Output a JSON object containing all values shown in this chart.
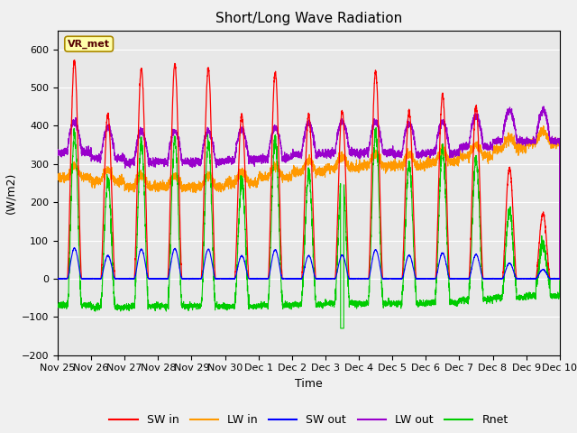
{
  "title": "Short/Long Wave Radiation",
  "xlabel": "Time",
  "ylabel": "(W/m2)",
  "ylim": [
    -200,
    650
  ],
  "yticks": [
    -200,
    -100,
    0,
    100,
    200,
    300,
    400,
    500,
    600
  ],
  "n_days": 15,
  "n_points_per_day": 288,
  "series_colors": {
    "SW_in": "#ff0000",
    "LW_in": "#ff9900",
    "SW_out": "#0000ff",
    "LW_out": "#9900cc",
    "Rnet": "#00cc00"
  },
  "legend_labels": [
    "SW in",
    "LW in",
    "SW out",
    "LW out",
    "Rnet"
  ],
  "annotation_text": "VR_met",
  "background_color": "#e8e8e8",
  "grid_color": "#ffffff",
  "tick_labels": [
    "Nov 25",
    "Nov 26",
    "Nov 27",
    "Nov 28",
    "Nov 29",
    "Nov 30",
    "Dec 1",
    "Dec 2",
    "Dec 3",
    "Dec 4",
    "Dec 5",
    "Dec 6",
    "Dec 7",
    "Dec 8",
    "Dec 9",
    "Dec 10"
  ],
  "tick_positions": [
    0,
    1,
    2,
    3,
    4,
    5,
    6,
    7,
    8,
    9,
    10,
    11,
    12,
    13,
    14,
    15
  ],
  "sw_in_peaks": [
    570,
    430,
    550,
    560,
    550,
    430,
    540,
    430,
    440,
    540,
    440,
    480,
    450,
    290,
    170,
    0
  ],
  "lw_in_base": [
    265,
    255,
    240,
    240,
    240,
    250,
    265,
    280,
    290,
    295,
    295,
    305,
    320,
    340,
    355,
    360
  ],
  "lw_out_night": [
    330,
    315,
    305,
    305,
    305,
    310,
    315,
    325,
    330,
    330,
    325,
    330,
    345,
    360,
    360,
    365
  ],
  "rnet_night": [
    -70,
    -75,
    -72,
    -72,
    -72,
    -73,
    -70,
    -68,
    -65,
    -65,
    -65,
    -62,
    -55,
    -50,
    -45,
    -40
  ]
}
